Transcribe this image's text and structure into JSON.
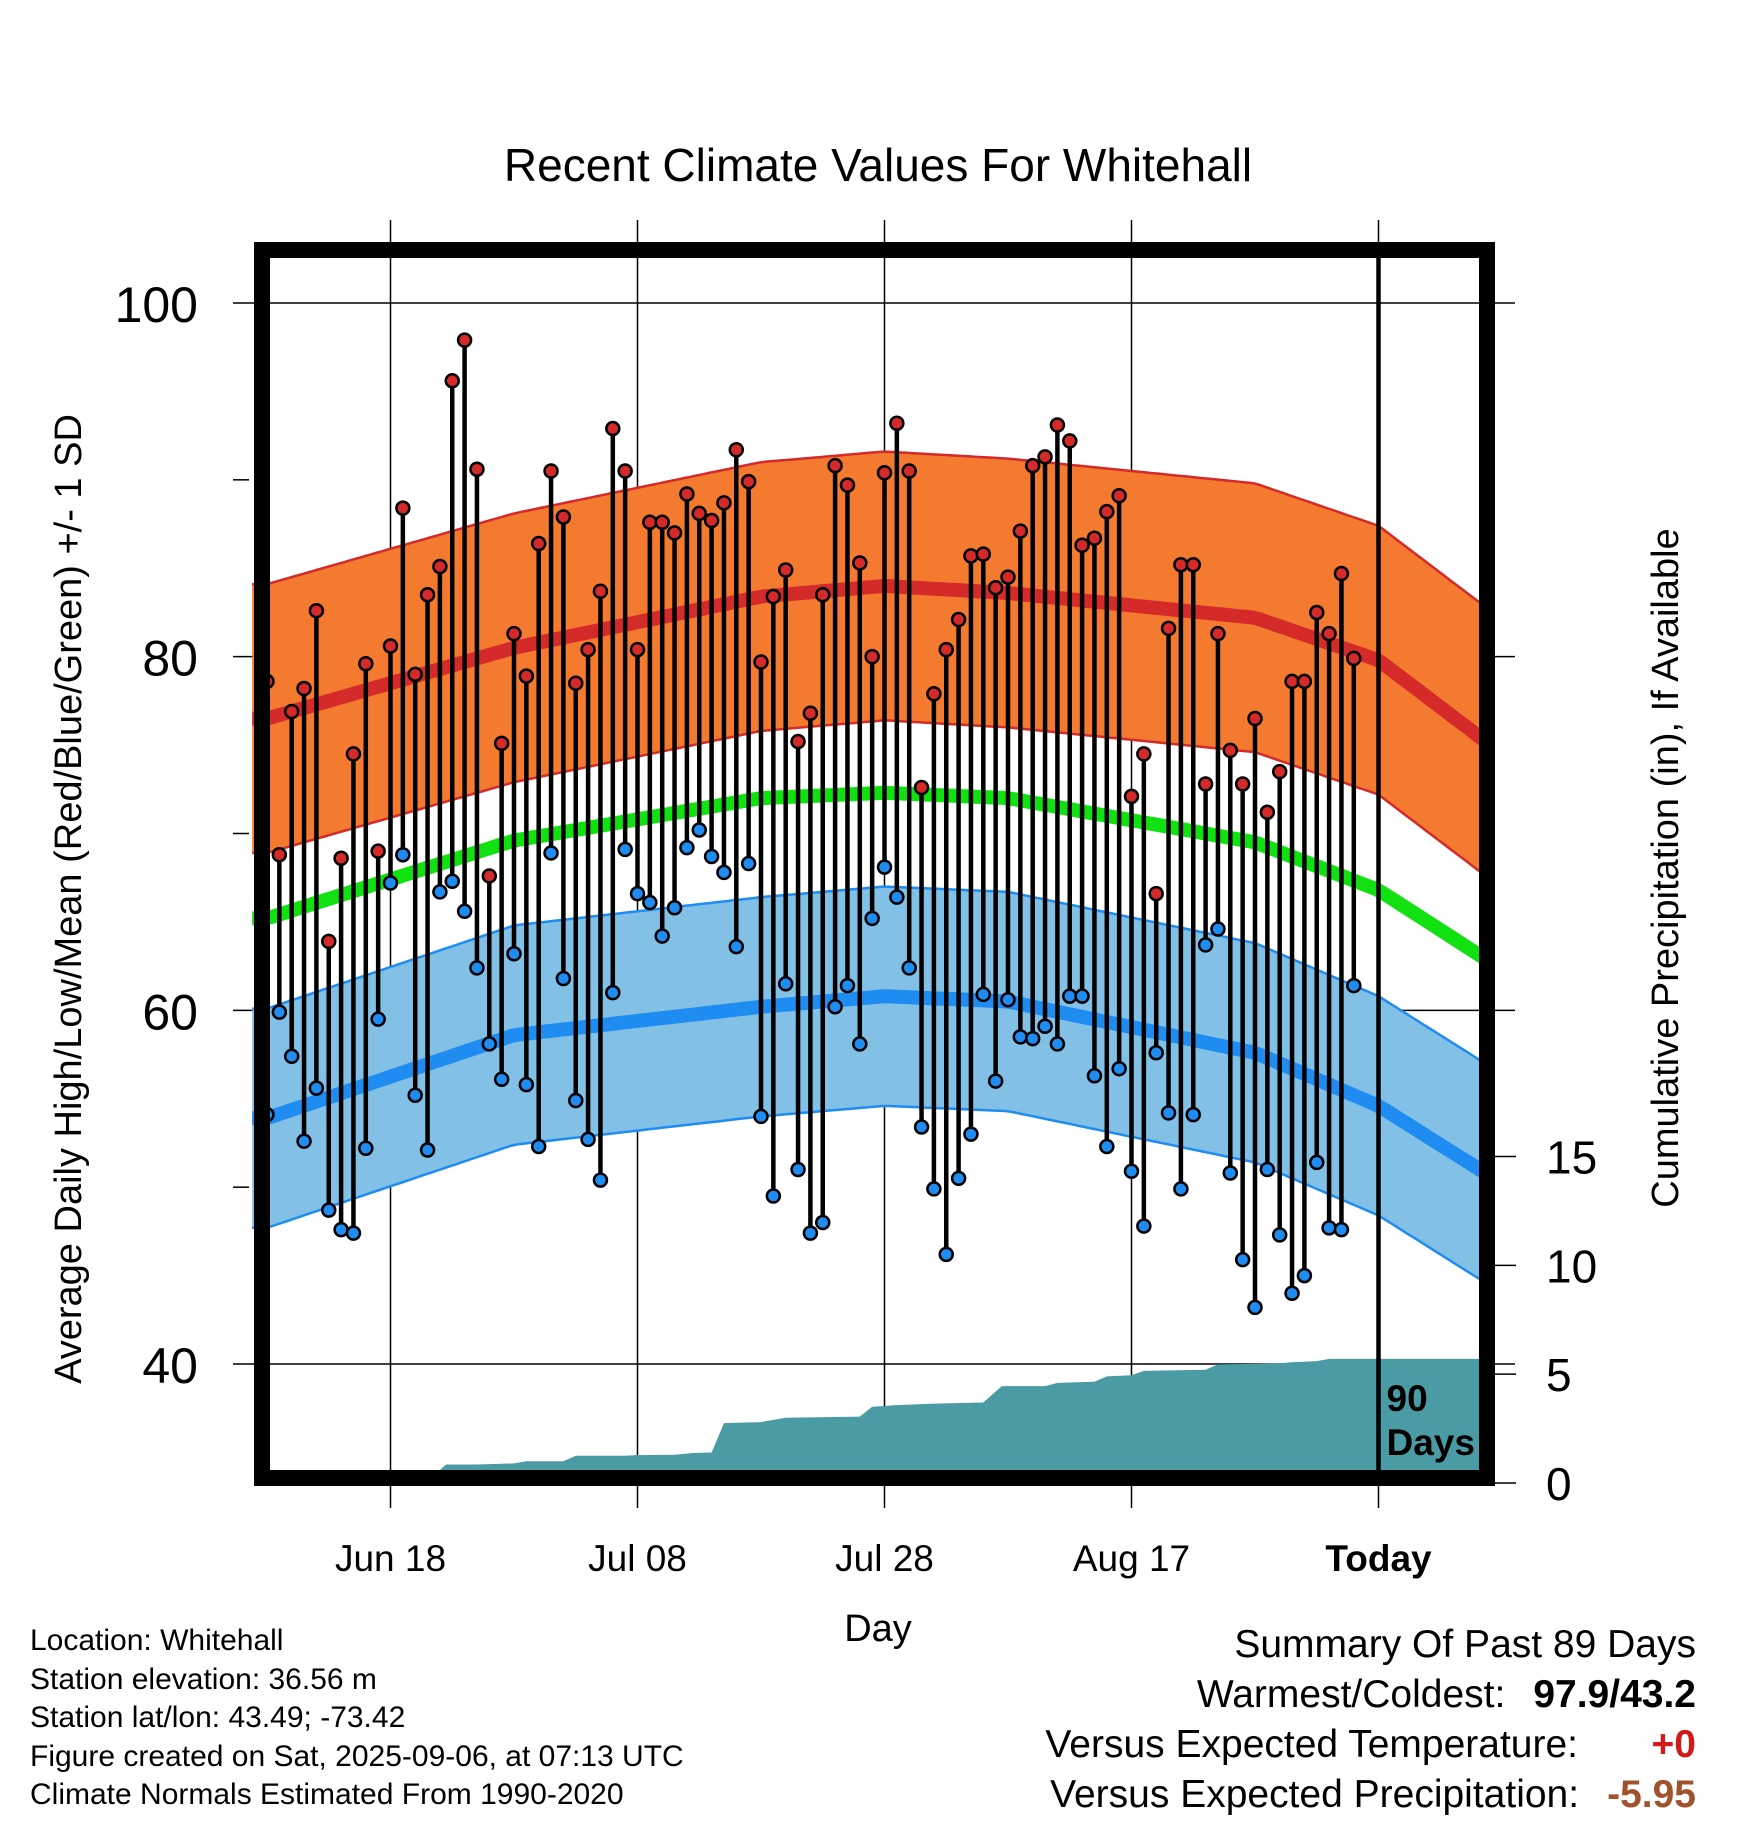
{
  "chart_data": {
    "type": "line",
    "title": "Recent Climate Values For Whitehall",
    "xlabel": "Day",
    "ylabel": "Average Daily High/Low/Mean (Red/Blue/Green) +/- 1 SD",
    "y2label": "Cumulative Precipitation (in), If Available",
    "xtick_labels": [
      "Jun 18",
      "Jul 08",
      "Jul 28",
      "Aug 17",
      "Today"
    ],
    "ytick_labels": [
      "100",
      "80",
      "60",
      "40"
    ],
    "y2tick_labels": [
      "15",
      "10",
      "5",
      "0"
    ],
    "ylim": [
      33.7,
      101
    ],
    "y2lim": [
      0,
      17
    ],
    "today_marker": "90\nDays",
    "colors": {
      "high_band": "#f47a30",
      "high_line": "#d42a2a",
      "low_band": "#82c0e6",
      "low_line": "#1e8cf0",
      "mean_line": "#11e011",
      "precip": "#4a9ba4"
    },
    "normals": {
      "high_mean": [
        [
          0,
          76.5
        ],
        [
          20,
          80.5
        ],
        [
          40,
          83.4
        ],
        [
          50,
          84
        ],
        [
          60,
          83.6
        ],
        [
          80,
          82.2
        ],
        [
          90,
          79.8
        ],
        [
          100,
          74.5
        ]
      ],
      "high_sd": 7.6,
      "low_mean": [
        [
          0,
          53.9
        ],
        [
          20,
          58.6
        ],
        [
          40,
          60.2
        ],
        [
          50,
          60.8
        ],
        [
          60,
          60.5
        ],
        [
          80,
          57.6
        ],
        [
          90,
          54.6
        ],
        [
          100,
          50.2
        ]
      ],
      "low_sd": 6.2,
      "mean": [
        [
          0,
          65.2
        ],
        [
          20,
          69.6
        ],
        [
          40,
          72
        ],
        [
          50,
          72.3
        ],
        [
          60,
          72
        ],
        [
          80,
          69.5
        ],
        [
          90,
          66.8
        ],
        [
          100,
          62.3
        ]
      ]
    },
    "series": [
      {
        "name": "High",
        "values": [
          78.6,
          68.8,
          76.9,
          78.2,
          82.6,
          63.9,
          68.6,
          74.5,
          79.6,
          69.0,
          80.6,
          88.4,
          79.0,
          83.5,
          85.1,
          95.6,
          97.9,
          90.6,
          67.6,
          75.1,
          81.3,
          78.9,
          86.4,
          90.5,
          87.9,
          78.5,
          80.4,
          83.7,
          92.9,
          90.5,
          80.4,
          87.6,
          87.6,
          87.0,
          89.2,
          88.1,
          87.7,
          88.7,
          91.7,
          89.9,
          79.7,
          83.4,
          84.9,
          75.2,
          76.8,
          83.5,
          90.8,
          89.7,
          85.3,
          80.0,
          90.4,
          93.2,
          90.5,
          72.6,
          77.9,
          80.4,
          82.1,
          85.7,
          85.8,
          83.9,
          84.5,
          87.1,
          90.8,
          91.3,
          93.1,
          92.2,
          86.3,
          86.7,
          88.2,
          89.1,
          72.1,
          74.5,
          66.6,
          81.6,
          85.2,
          85.2,
          72.8,
          81.3,
          74.7,
          72.8,
          76.5,
          71.2,
          73.5,
          78.6,
          78.6,
          82.5,
          81.3,
          84.7,
          79.9
        ],
        "lows": [
          54.1,
          59.9,
          57.4,
          52.6,
          55.6,
          48.7,
          47.6,
          47.4,
          52.2,
          59.5,
          67.2,
          68.8,
          55.2,
          52.1,
          66.7,
          67.3,
          65.6,
          62.4,
          58.1,
          56.1,
          63.2,
          55.8,
          52.3,
          68.9,
          61.8,
          54.9,
          52.7,
          50.4,
          61.0,
          69.1,
          66.6,
          66.1,
          64.2,
          65.8,
          69.2,
          70.2,
          68.7,
          67.8,
          63.6,
          68.3,
          54.0,
          49.5,
          61.5,
          51.0,
          47.4,
          48.0,
          60.2,
          61.4,
          58.1,
          65.2,
          68.1,
          66.4,
          62.4,
          53.4,
          49.9,
          46.2,
          50.5,
          53.0,
          60.9,
          56.0,
          60.6,
          58.5,
          58.4,
          59.1,
          58.1,
          60.8,
          60.8,
          56.3,
          52.3,
          56.7,
          50.9,
          47.8,
          57.6,
          54.2,
          49.9,
          54.1,
          63.7,
          64.6,
          50.8,
          45.9,
          43.2,
          51.0,
          47.3,
          44.0,
          45.0,
          51.4,
          47.7,
          47.6,
          61.4
        ]
      },
      {
        "name": "Cumulative Precipitation",
        "values": [
          [
            0,
            0
          ],
          [
            9,
            0
          ],
          [
            9.5,
            0.1
          ],
          [
            11,
            0.25
          ],
          [
            12.5,
            0.3
          ],
          [
            13.5,
            0.35
          ],
          [
            14.5,
            0.85
          ],
          [
            17,
            0.85
          ],
          [
            20,
            0.9
          ],
          [
            21,
            1.0
          ],
          [
            24,
            1.0
          ],
          [
            25,
            1.25
          ],
          [
            29,
            1.25
          ],
          [
            30,
            1.28
          ],
          [
            33,
            1.3
          ],
          [
            34.5,
            1.38
          ],
          [
            36,
            1.4
          ],
          [
            37,
            2.75
          ],
          [
            40,
            2.8
          ],
          [
            42,
            3.0
          ],
          [
            48,
            3.05
          ],
          [
            49,
            3.5
          ],
          [
            51,
            3.58
          ],
          [
            54,
            3.65
          ],
          [
            58,
            3.7
          ],
          [
            59.5,
            4.45
          ],
          [
            63,
            4.45
          ],
          [
            64,
            4.6
          ],
          [
            67,
            4.65
          ],
          [
            68,
            4.9
          ],
          [
            70,
            4.95
          ],
          [
            71,
            5.15
          ],
          [
            76,
            5.2
          ],
          [
            77,
            5.45
          ],
          [
            82,
            5.5
          ],
          [
            83,
            5.55
          ],
          [
            85,
            5.6
          ],
          [
            86,
            5.7
          ],
          [
            99,
            5.7
          ]
        ]
      }
    ]
  },
  "info": {
    "location": "Location: Whitehall",
    "elevation": "Station elevation: 36.56 m",
    "latlon": "Station lat/lon: 43.49; -73.42",
    "created": "Figure created on Sat, 2025-09-06, at 07:13 UTC",
    "normals": "Climate Normals Estimated From 1990-2020"
  },
  "summary": {
    "head": "Summary Of Past 89 Days",
    "warmest_label": "Warmest/Coldest:",
    "warmest_value": "97.9/43.2",
    "temp_label": "Versus Expected Temperature:",
    "temp_value": "+0",
    "precip_label": "Versus Expected Precipitation:",
    "precip_value": "-5.95"
  }
}
